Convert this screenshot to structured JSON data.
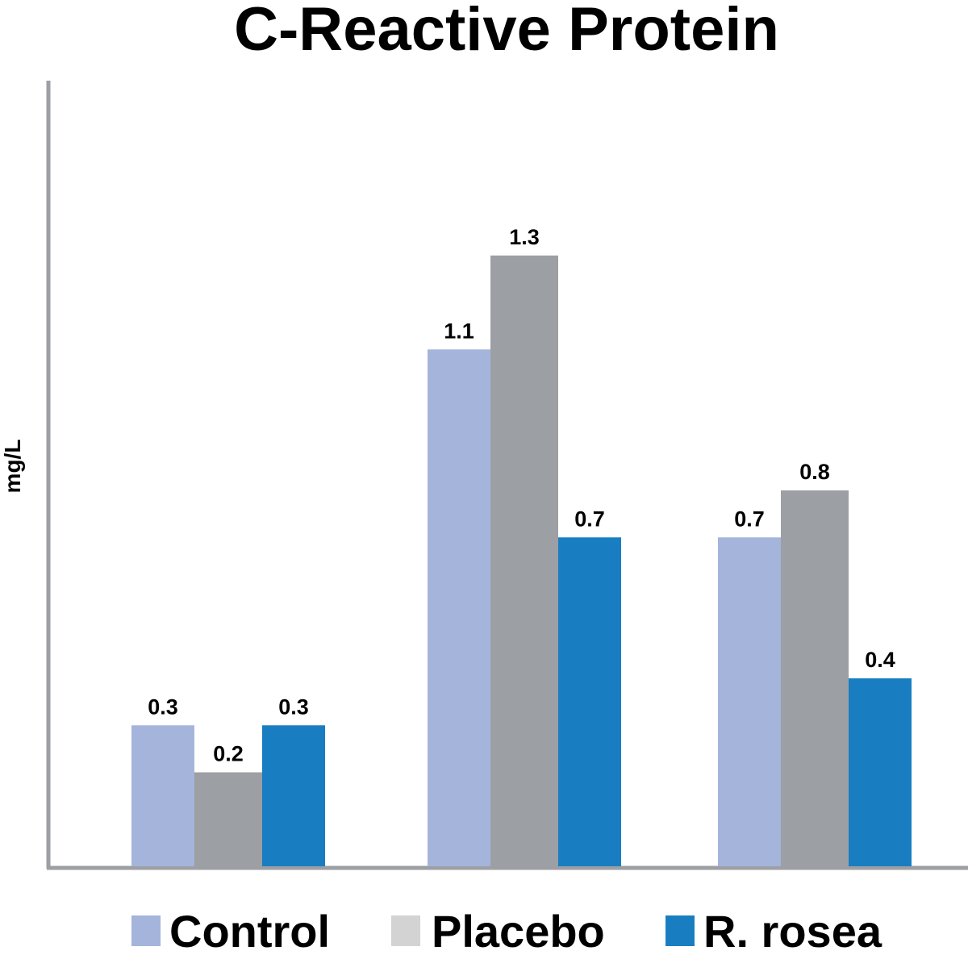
{
  "chart_data": {
    "type": "bar",
    "title": "C-Reactive Protein",
    "xlabel": "",
    "ylabel": "mg/L",
    "ylim": [
      0,
      1.45
    ],
    "grid": false,
    "categories": [
      "",
      "",
      ""
    ],
    "series": [
      {
        "name": "Control",
        "color": "#a5b4da",
        "values": [
          0.3,
          1.1,
          0.7
        ]
      },
      {
        "name": "Placebo",
        "color": "#9c9fa3",
        "values": [
          0.2,
          1.3,
          0.8
        ]
      },
      {
        "name": "R. rosea",
        "color": "#197ec1",
        "values": [
          0.3,
          0.7,
          0.4
        ]
      }
    ],
    "data_labels": [
      [
        "0.3",
        "1.1",
        "0.7"
      ],
      [
        "0.2",
        "1.3",
        "0.8"
      ],
      [
        "0.3",
        "0.7",
        "0.4"
      ]
    ],
    "legend": {
      "position": "bottom",
      "entries": [
        {
          "label": "Control",
          "swatch_color": "#a5b4da"
        },
        {
          "label": "Placebo",
          "swatch_color": "#d3d3d3"
        },
        {
          "label": "R. rosea",
          "swatch_color": "#197ec1"
        }
      ]
    },
    "axis_color": "#9c9fa3"
  }
}
